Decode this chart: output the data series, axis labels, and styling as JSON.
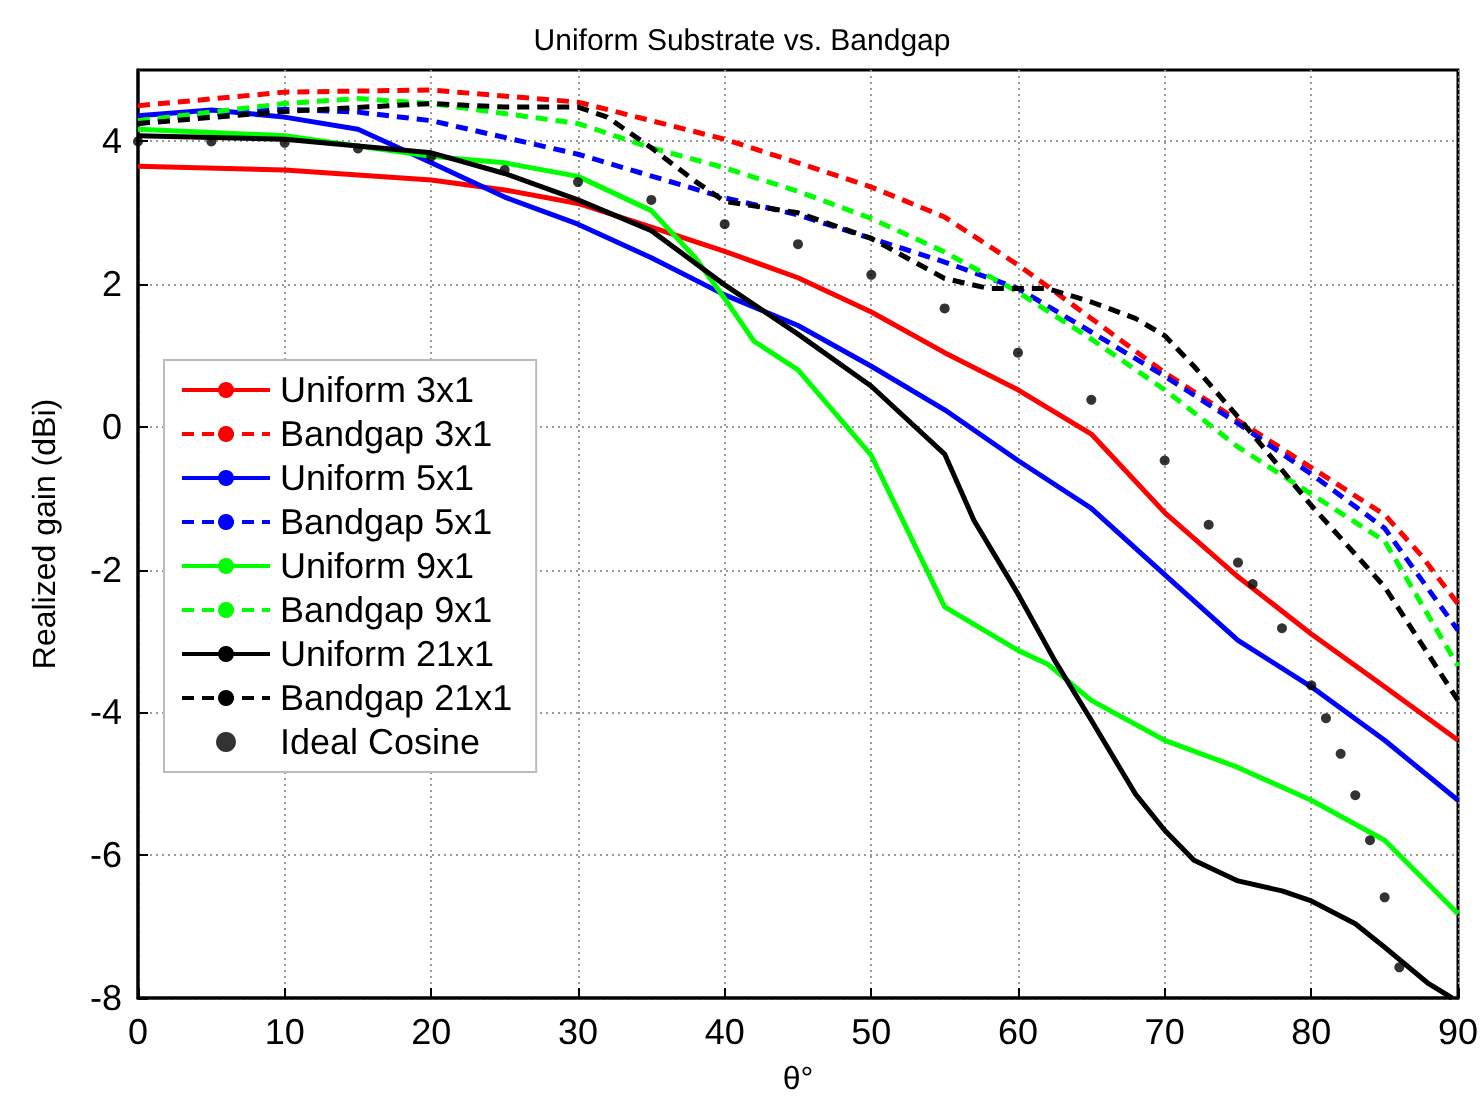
{
  "chart_data": {
    "type": "line",
    "title": "Uniform Substrate vs. Bandgap",
    "xlabel": "θ°",
    "ylabel": "Realized gain (dBi)",
    "xlim": [
      0,
      90
    ],
    "xticks": [
      0,
      10,
      20,
      30,
      40,
      50,
      60,
      70,
      80,
      90
    ],
    "ylim": [
      -8,
      5
    ],
    "yticks": [
      -8,
      -6,
      -4,
      -2,
      0,
      2,
      4
    ],
    "grid": true,
    "legend": "left",
    "marker": "none",
    "line_style": "solid",
    "series": [
      {
        "name": "Uniform 3x1",
        "color": "#ff0000",
        "x": [
          0,
          10,
          20,
          25,
          30,
          35,
          40,
          45,
          50,
          55,
          60,
          65,
          70,
          75,
          80,
          85,
          90
        ],
        "values": [
          3.65,
          3.6,
          3.46,
          3.32,
          3.13,
          2.8,
          2.46,
          2.09,
          1.61,
          1.04,
          0.52,
          -0.1,
          -1.2,
          -2.1,
          -2.9,
          -3.64,
          -4.39
        ]
      },
      {
        "name": "Bandgap 3x1",
        "color": "#ff0000",
        "line_style": "dashed",
        "x": [
          0,
          10,
          20,
          30,
          40,
          45,
          50,
          55,
          60,
          65,
          70,
          75,
          80,
          85,
          87.5,
          90
        ],
        "values": [
          4.5,
          4.69,
          4.72,
          4.55,
          4.03,
          3.7,
          3.36,
          2.94,
          2.27,
          1.52,
          0.76,
          0.09,
          -0.57,
          -1.23,
          -1.8,
          -2.48
        ]
      },
      {
        "name": "Uniform 5x1",
        "color": "#0000ff",
        "x": [
          0,
          5,
          10,
          15,
          20,
          25,
          30,
          35,
          40,
          45,
          50,
          55,
          60,
          65,
          70,
          75,
          80,
          85,
          90
        ],
        "values": [
          4.36,
          4.44,
          4.34,
          4.17,
          3.7,
          3.22,
          2.84,
          2.37,
          1.85,
          1.42,
          0.85,
          0.24,
          -0.47,
          -1.14,
          -2.07,
          -2.99,
          -3.64,
          -4.39,
          -5.23
        ]
      },
      {
        "name": "Bandgap 5x1",
        "color": "#0000ff",
        "line_style": "dashed",
        "x": [
          0,
          5,
          10,
          15,
          20,
          30,
          40,
          45,
          50,
          55,
          60,
          65,
          70,
          75,
          80,
          85,
          90
        ],
        "values": [
          4.25,
          4.39,
          4.45,
          4.41,
          4.29,
          3.82,
          3.21,
          2.97,
          2.64,
          2.31,
          1.94,
          1.33,
          0.71,
          0.05,
          -0.66,
          -1.42,
          -2.85
        ]
      },
      {
        "name": "Uniform 9x1",
        "color": "#00ff00",
        "x": [
          0,
          10,
          20,
          25,
          30,
          35,
          38,
          40,
          42,
          45,
          50,
          55,
          60,
          62,
          65,
          70,
          75,
          80,
          85,
          90
        ],
        "values": [
          4.17,
          4.08,
          3.79,
          3.7,
          3.51,
          3.03,
          2.37,
          1.8,
          1.2,
          0.8,
          -0.4,
          -2.52,
          -3.13,
          -3.32,
          -3.83,
          -4.39,
          -4.77,
          -5.23,
          -5.79,
          -6.82
        ]
      },
      {
        "name": "Bandgap 9x1",
        "color": "#00ff00",
        "line_style": "dashed",
        "x": [
          0,
          10,
          15,
          20,
          30,
          35,
          40,
          45,
          50,
          55,
          60,
          65,
          70,
          75,
          80,
          85,
          90
        ],
        "values": [
          4.29,
          4.53,
          4.6,
          4.53,
          4.25,
          3.91,
          3.63,
          3.3,
          2.92,
          2.45,
          1.89,
          1.23,
          0.52,
          -0.28,
          -0.94,
          -1.6,
          -3.35
        ]
      },
      {
        "name": "Uniform 21x1",
        "color": "#000000",
        "x": [
          0,
          10,
          20,
          25,
          30,
          35,
          40,
          45,
          50,
          55,
          57,
          60,
          62.5,
          65,
          68,
          70,
          72,
          75,
          78,
          80,
          83,
          85,
          88,
          89.6
        ],
        "values": [
          4.08,
          4.03,
          3.84,
          3.55,
          3.18,
          2.75,
          1.99,
          1.3,
          0.57,
          -0.38,
          -1.31,
          -2.34,
          -3.27,
          -4.11,
          -5.14,
          -5.65,
          -6.07,
          -6.36,
          -6.5,
          -6.64,
          -6.96,
          -7.29,
          -7.8,
          -8
        ]
      },
      {
        "name": "Bandgap 21x1",
        "color": "#000000",
        "line_style": "dashed",
        "x": [
          0,
          10,
          20,
          25,
          30,
          32,
          35,
          38,
          40,
          45,
          50,
          55,
          58,
          60,
          62,
          65,
          68,
          70,
          72,
          75,
          80,
          85,
          90
        ],
        "values": [
          4.25,
          4.42,
          4.53,
          4.48,
          4.48,
          4.34,
          3.91,
          3.44,
          3.16,
          3.0,
          2.64,
          2.08,
          1.94,
          1.94,
          1.94,
          1.75,
          1.52,
          1.28,
          0.85,
          0.14,
          -1.1,
          -2.24,
          -3.83
        ]
      },
      {
        "name": "Ideal Cosine",
        "type": "scatter",
        "marker": "circle",
        "color": "#000000",
        "x": [
          0,
          5,
          10,
          15,
          20,
          25,
          30,
          35,
          40,
          45,
          50,
          55,
          60,
          65,
          70,
          73,
          75,
          76,
          78,
          80,
          81,
          82,
          83,
          84,
          85,
          86
        ],
        "values": [
          4.0,
          4.0,
          3.98,
          3.9,
          3.79,
          3.6,
          3.43,
          3.18,
          2.84,
          2.56,
          2.13,
          1.66,
          1.04,
          0.38,
          -0.47,
          -1.37,
          -1.9,
          -2.2,
          -2.82,
          -3.62,
          -4.08,
          -4.58,
          -5.16,
          -5.79,
          -6.59,
          -7.57
        ]
      }
    ]
  }
}
